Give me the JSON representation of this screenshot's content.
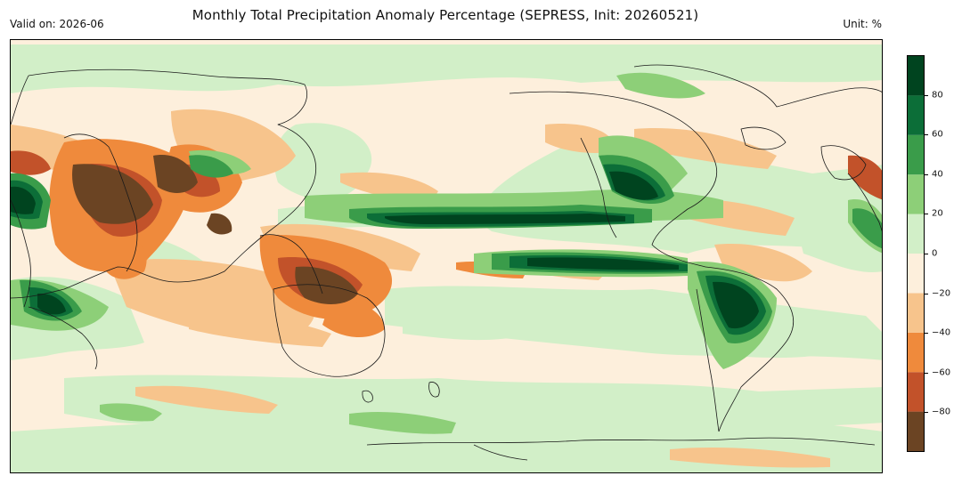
{
  "header": {
    "title": "Monthly Total Precipitation Anomaly Percentage (SEPRESS, Init: 20260521)",
    "valid_on": "Valid on: 2026-06",
    "unit": "Unit: %"
  },
  "colorbar": {
    "min": -100,
    "max": 100,
    "bins": [
      {
        "from": -100,
        "to": -80,
        "color": "#6b4423"
      },
      {
        "from": -80,
        "to": -60,
        "color": "#c2522a"
      },
      {
        "from": -60,
        "to": -40,
        "color": "#ef8a3c"
      },
      {
        "from": -40,
        "to": -20,
        "color": "#f7c48c"
      },
      {
        "from": -20,
        "to": 0,
        "color": "#fdefdc"
      },
      {
        "from": 0,
        "to": 20,
        "color": "#d2efc8"
      },
      {
        "from": 20,
        "to": 40,
        "color": "#8dcf78"
      },
      {
        "from": 40,
        "to": 60,
        "color": "#3a9c4a"
      },
      {
        "from": 60,
        "to": 80,
        "color": "#0c6e38"
      },
      {
        "from": 80,
        "to": 100,
        "color": "#00441f"
      }
    ],
    "ticks": [
      "80",
      "60",
      "40",
      "20",
      "0",
      "−20",
      "−40",
      "−60",
      "−80"
    ],
    "tick_values": [
      80,
      60,
      40,
      20,
      0,
      -20,
      -40,
      -60,
      -80
    ]
  }
}
